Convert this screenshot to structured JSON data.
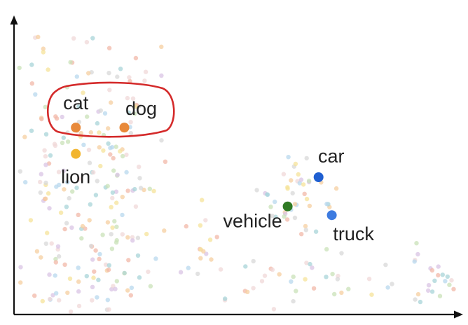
{
  "chart_data": {
    "type": "scatter",
    "title": "",
    "xlabel": "",
    "ylabel": "",
    "grid": false,
    "xlim": [
      0,
      100
    ],
    "ylim": [
      0,
      100
    ],
    "highlighted_points": [
      {
        "label": "cat",
        "x": 14,
        "y": 64,
        "color": "#e8893a"
      },
      {
        "label": "dog",
        "x": 25,
        "y": 64,
        "color": "#e8893a"
      },
      {
        "label": "lion",
        "x": 14,
        "y": 55,
        "color": "#f2b52f"
      },
      {
        "label": "car",
        "x": 69,
        "y": 47,
        "color": "#1f5fd1"
      },
      {
        "label": "vehicle",
        "x": 62,
        "y": 37,
        "color": "#2f7a24"
      },
      {
        "label": "truck",
        "x": 72,
        "y": 34,
        "color": "#3d7be0"
      }
    ],
    "annotation": {
      "type": "circled-group",
      "members": [
        "cat",
        "dog"
      ],
      "color": "#d42a2a"
    },
    "background_point_colors": [
      "#f2b8a8",
      "#f5cfa0",
      "#b8d8ee",
      "#c9e2b8",
      "#d9c4e4",
      "#f0d8d8",
      "#d8d8d8",
      "#f6e39a",
      "#a8d4d8"
    ]
  }
}
